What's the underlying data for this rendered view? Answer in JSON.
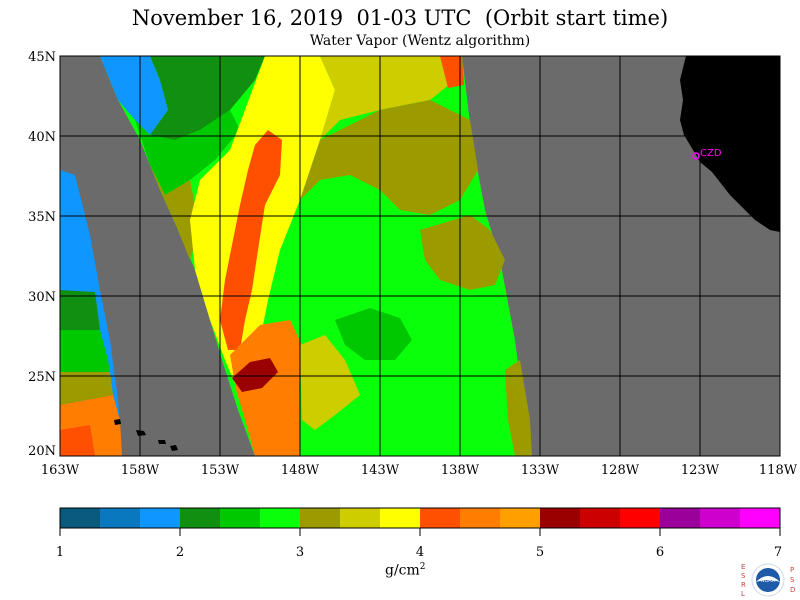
{
  "header": {
    "title": "November 16, 2019  01-03 UTC  (Orbit start time)",
    "subtitle": "Water Vapor (Wentz algorithm)"
  },
  "map": {
    "lat_labels": [
      "45N",
      "40N",
      "35N",
      "30N",
      "25N",
      "20N"
    ],
    "lon_labels": [
      "163W",
      "158W",
      "153W",
      "148W",
      "143W",
      "138W",
      "133W",
      "128W",
      "123W",
      "118W"
    ],
    "station_label": "CZD",
    "colors": {
      "ocean_no_data": "#6b6b6b",
      "land": "#000000",
      "grid": "#000000",
      "station": "#ff00ff"
    }
  },
  "colorbar": {
    "unit": "g/cm",
    "unit_exponent": "2",
    "tick_labels": [
      "1",
      "2",
      "3",
      "4",
      "5",
      "6",
      "7"
    ],
    "colors": [
      "#0a5a7d",
      "#0a78be",
      "#0f96ff",
      "#118f11",
      "#00c800",
      "#0aff0a",
      "#9b9b00",
      "#cdcd00",
      "#ffff00",
      "#ff5000",
      "#ff7d00",
      "#ffa000",
      "#9b0000",
      "#cd0000",
      "#ff0000",
      "#9b009b",
      "#cd00cd",
      "#ff00ff"
    ]
  },
  "logo": {
    "left_letters": [
      "E",
      "S",
      "R",
      "L"
    ],
    "right_letters": [
      "P",
      "S",
      "D"
    ],
    "center_text": "NOAA"
  }
}
